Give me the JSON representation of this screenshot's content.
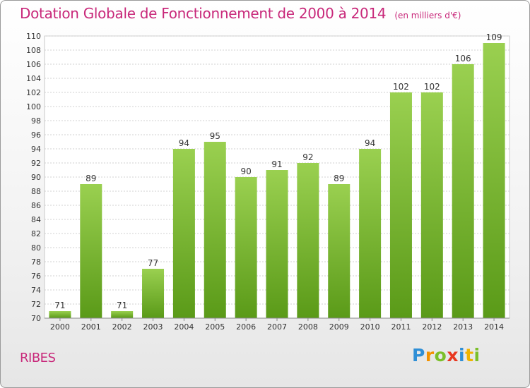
{
  "title": "Dotation Globale de Fonctionnement de 2000 à 2014",
  "unit": "(en milliers d'€)",
  "commune": "RIBES",
  "logo_letters": [
    "P",
    "r",
    "o",
    "x",
    "i",
    "t",
    "i"
  ],
  "colors": {
    "accent": "#c8287a",
    "bar_light": "#9ad050",
    "bar_dark": "#5a9a18",
    "grid": "#d0d0d0"
  },
  "chart_data": {
    "type": "bar",
    "title": "Dotation Globale de Fonctionnement de 2000 à 2014",
    "categories": [
      "2000",
      "2001",
      "2002",
      "2003",
      "2004",
      "2005",
      "2006",
      "2007",
      "2008",
      "2009",
      "2010",
      "2011",
      "2012",
      "2013",
      "2014"
    ],
    "values": [
      71,
      89,
      71,
      77,
      94,
      95,
      90,
      91,
      92,
      89,
      94,
      102,
      102,
      106,
      109
    ],
    "ylim": [
      70,
      110
    ],
    "yticks": [
      70,
      72,
      74,
      76,
      78,
      80,
      82,
      84,
      86,
      88,
      90,
      92,
      94,
      96,
      98,
      100,
      102,
      104,
      106,
      108,
      110
    ],
    "grid": true,
    "data_labels": true
  }
}
